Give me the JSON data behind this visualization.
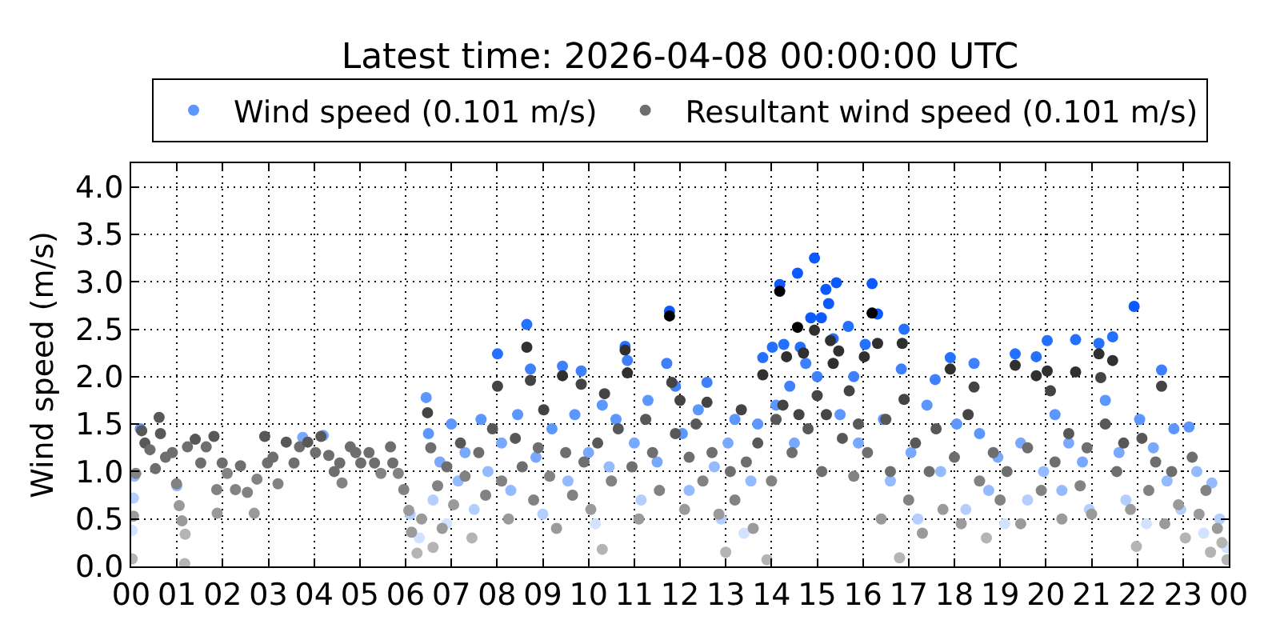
{
  "chart_data": {
    "type": "scatter",
    "title": "Latest time: 2026-04-08 00:00:00 UTC",
    "ylabel": "Wind speed (m/s)",
    "xlim": [
      0,
      24
    ],
    "xticks": [
      {
        "value": 0,
        "label": "00"
      },
      {
        "value": 1,
        "label": "01"
      },
      {
        "value": 2,
        "label": "02"
      },
      {
        "value": 3,
        "label": "03"
      },
      {
        "value": 4,
        "label": "04"
      },
      {
        "value": 5,
        "label": "05"
      },
      {
        "value": 6,
        "label": "06"
      },
      {
        "value": 7,
        "label": "07"
      },
      {
        "value": 8,
        "label": "08"
      },
      {
        "value": 9,
        "label": "09"
      },
      {
        "value": 10,
        "label": "10"
      },
      {
        "value": 11,
        "label": "11"
      },
      {
        "value": 12,
        "label": "12"
      },
      {
        "value": 13,
        "label": "13"
      },
      {
        "value": 14,
        "label": "14"
      },
      {
        "value": 15,
        "label": "15"
      },
      {
        "value": 16,
        "label": "16"
      },
      {
        "value": 17,
        "label": "17"
      },
      {
        "value": 18,
        "label": "18"
      },
      {
        "value": 19,
        "label": "19"
      },
      {
        "value": 20,
        "label": "20"
      },
      {
        "value": 21,
        "label": "21"
      },
      {
        "value": 22,
        "label": "22"
      },
      {
        "value": 23,
        "label": "23"
      },
      {
        "value": 24,
        "label": "00"
      }
    ],
    "ylim": [
      0,
      4.25
    ],
    "yticks": [
      {
        "value": 0,
        "label": "0.0"
      },
      {
        "value": 0.5,
        "label": "0.5"
      },
      {
        "value": 1,
        "label": "1.0"
      },
      {
        "value": 1.5,
        "label": "1.5"
      },
      {
        "value": 2,
        "label": "2.0"
      },
      {
        "value": 2.5,
        "label": "2.5"
      },
      {
        "value": 3,
        "label": "3.0"
      },
      {
        "value": 3.5,
        "label": "3.5"
      },
      {
        "value": 4,
        "label": "4.0"
      }
    ],
    "grid": true,
    "legend": "top",
    "marker": "circle",
    "series": [
      {
        "name": "Wind speed (0.101 m/s)",
        "color": "#5c96ff",
        "x": [
          0.02,
          0.05,
          0.07,
          0.2,
          1.0,
          3.75,
          4.2,
          6.1,
          6.3,
          6.45,
          6.5,
          6.6,
          6.75,
          6.9,
          7.0,
          7.15,
          7.3,
          7.5,
          7.65,
          7.8,
          8.01,
          8.1,
          8.3,
          8.45,
          8.65,
          8.73,
          8.85,
          9.0,
          9.2,
          9.43,
          9.55,
          9.7,
          9.84,
          10.0,
          10.15,
          10.3,
          10.45,
          10.6,
          10.8,
          10.85,
          11.0,
          11.15,
          11.3,
          11.5,
          11.71,
          11.77,
          11.9,
          12.05,
          12.2,
          12.4,
          12.59,
          12.75,
          12.9,
          13.05,
          13.2,
          13.4,
          13.55,
          13.7,
          13.81,
          14.02,
          14.1,
          14.18,
          14.27,
          14.4,
          14.5,
          14.57,
          14.63,
          14.75,
          14.86,
          14.94,
          15.0,
          15.09,
          15.19,
          15.25,
          15.35,
          15.42,
          15.5,
          15.68,
          15.8,
          15.9,
          16.05,
          16.2,
          16.32,
          16.45,
          16.6,
          16.84,
          16.9,
          17.05,
          17.2,
          17.4,
          17.58,
          17.7,
          17.91,
          18.05,
          18.25,
          18.43,
          18.55,
          18.75,
          18.95,
          19.1,
          19.33,
          19.45,
          19.6,
          19.79,
          19.95,
          20.03,
          20.2,
          20.35,
          20.5,
          20.65,
          20.8,
          20.95,
          21.16,
          21.3,
          21.46,
          21.6,
          21.75,
          21.93,
          22.05,
          22.2,
          22.35,
          22.53,
          22.65,
          22.8,
          22.95,
          23.13,
          23.3,
          23.45,
          23.63,
          23.8,
          23.95
        ],
        "values": [
          0.38,
          0.72,
          0.95,
          1.45,
          0.85,
          1.36,
          1.38,
          0.55,
          0.3,
          1.78,
          1.4,
          0.7,
          1.1,
          0.45,
          1.5,
          0.9,
          1.2,
          0.6,
          1.55,
          1.0,
          2.24,
          1.3,
          0.8,
          1.6,
          2.55,
          2.08,
          1.15,
          0.55,
          1.45,
          2.11,
          0.9,
          1.6,
          2.06,
          1.2,
          0.45,
          1.7,
          1.05,
          1.55,
          2.32,
          2.17,
          1.3,
          0.7,
          1.75,
          1.1,
          2.14,
          2.69,
          1.9,
          1.4,
          0.8,
          1.65,
          1.94,
          1.05,
          0.5,
          1.3,
          1.55,
          0.35,
          0.9,
          1.5,
          2.2,
          2.31,
          1.7,
          2.97,
          2.34,
          1.9,
          1.3,
          3.09,
          2.31,
          2.14,
          2.62,
          3.25,
          2.0,
          2.62,
          2.92,
          2.77,
          2.4,
          2.99,
          1.6,
          2.53,
          2.0,
          1.3,
          2.34,
          2.98,
          2.66,
          1.55,
          0.9,
          2.08,
          2.5,
          1.2,
          0.5,
          1.7,
          1.97,
          1.0,
          2.2,
          1.5,
          0.6,
          2.14,
          1.4,
          0.8,
          1.15,
          0.45,
          2.24,
          1.3,
          0.7,
          2.21,
          1.0,
          2.38,
          1.6,
          0.8,
          1.3,
          2.39,
          1.1,
          0.6,
          2.35,
          1.75,
          2.42,
          1.2,
          0.7,
          2.74,
          1.55,
          0.45,
          1.25,
          2.07,
          0.9,
          1.45,
          0.6,
          1.47,
          1.0,
          0.35,
          0.88,
          0.5,
          0.2
        ],
        "colors": [
          "#d2e2ff",
          "#b4ceff",
          "#94baff",
          "#5c96ff",
          "#94baff",
          "#78a8ff",
          "#78a8ff",
          "#b4ceff",
          "#d2e2ff",
          "#5c96ff",
          "#5c96ff",
          "#b4ceff",
          "#78a8ff",
          "#d2e2ff",
          "#5c96ff",
          "#94baff",
          "#78a8ff",
          "#b4ceff",
          "#5c96ff",
          "#94baff",
          "#2470ff",
          "#78a8ff",
          "#94baff",
          "#5c96ff",
          "#2470ff",
          "#4080ff",
          "#78a8ff",
          "#b4ceff",
          "#5c96ff",
          "#4080ff",
          "#94baff",
          "#5c96ff",
          "#4080ff",
          "#78a8ff",
          "#d2e2ff",
          "#5c96ff",
          "#94baff",
          "#5c96ff",
          "#2470ff",
          "#4080ff",
          "#78a8ff",
          "#b4ceff",
          "#5c96ff",
          "#78a8ff",
          "#4080ff",
          "#0a5aff",
          "#4080ff",
          "#5c96ff",
          "#94baff",
          "#5c96ff",
          "#4080ff",
          "#94baff",
          "#b4ceff",
          "#78a8ff",
          "#5c96ff",
          "#d2e2ff",
          "#94baff",
          "#5c96ff",
          "#2470ff",
          "#2470ff",
          "#5c96ff",
          "#0a5aff",
          "#2470ff",
          "#4080ff",
          "#78a8ff",
          "#0a5aff",
          "#2470ff",
          "#4080ff",
          "#0a5aff",
          "#0a5aff",
          "#4080ff",
          "#0a5aff",
          "#0a5aff",
          "#0a5aff",
          "#2470ff",
          "#0a5aff",
          "#5c96ff",
          "#2470ff",
          "#4080ff",
          "#78a8ff",
          "#2470ff",
          "#0a5aff",
          "#0a5aff",
          "#5c96ff",
          "#94baff",
          "#4080ff",
          "#2470ff",
          "#78a8ff",
          "#b4ceff",
          "#5c96ff",
          "#4080ff",
          "#94baff",
          "#2470ff",
          "#5c96ff",
          "#b4ceff",
          "#4080ff",
          "#5c96ff",
          "#94baff",
          "#78a8ff",
          "#d2e2ff",
          "#2470ff",
          "#78a8ff",
          "#b4ceff",
          "#2470ff",
          "#94baff",
          "#2470ff",
          "#5c96ff",
          "#94baff",
          "#78a8ff",
          "#2470ff",
          "#78a8ff",
          "#b4ceff",
          "#2470ff",
          "#5c96ff",
          "#2470ff",
          "#78a8ff",
          "#b4ceff",
          "#0a5aff",
          "#5c96ff",
          "#d2e2ff",
          "#78a8ff",
          "#4080ff",
          "#94baff",
          "#5c96ff",
          "#b4ceff",
          "#5c96ff",
          "#94baff",
          "#d2e2ff",
          "#94baff",
          "#b4ceff",
          "#d2e2ff"
        ]
      },
      {
        "name": "Resultant wind speed (0.101 m/s)",
        "color": "#6e6e6e",
        "x": [
          0.02,
          0.05,
          0.1,
          0.23,
          0.3,
          0.41,
          0.53,
          0.61,
          0.64,
          0.75,
          0.9,
          0.99,
          1.05,
          1.11,
          1.17,
          1.18,
          1.23,
          1.4,
          1.52,
          1.64,
          1.81,
          1.87,
          1.88,
          1.99,
          2.1,
          2.28,
          2.39,
          2.54,
          2.69,
          2.75,
          2.92,
          2.98,
          3.1,
          3.21,
          3.39,
          3.56,
          3.68,
          3.86,
          4.03,
          4.15,
          4.32,
          4.44,
          4.56,
          4.61,
          4.79,
          4.91,
          5.02,
          5.2,
          5.32,
          5.46,
          5.67,
          5.72,
          5.84,
          5.96,
          6.07,
          6.13,
          6.25,
          6.35,
          6.48,
          6.55,
          6.6,
          6.7,
          6.8,
          6.9,
          7.05,
          7.2,
          7.3,
          7.45,
          7.6,
          7.75,
          7.9,
          8.01,
          8.1,
          8.25,
          8.4,
          8.55,
          8.65,
          8.73,
          8.8,
          8.9,
          9.02,
          9.15,
          9.3,
          9.43,
          9.5,
          9.65,
          9.84,
          9.9,
          10.05,
          10.2,
          10.3,
          10.35,
          10.5,
          10.65,
          10.8,
          10.85,
          10.95,
          11.1,
          11.25,
          11.4,
          11.55,
          11.77,
          11.82,
          11.9,
          12.0,
          12.1,
          12.2,
          12.35,
          12.5,
          12.59,
          12.7,
          12.85,
          13.0,
          13.1,
          13.2,
          13.34,
          13.45,
          13.6,
          13.7,
          13.81,
          13.9,
          14.0,
          14.1,
          14.18,
          14.25,
          14.33,
          14.45,
          14.57,
          14.6,
          14.7,
          14.8,
          14.94,
          15.0,
          15.1,
          15.2,
          15.29,
          15.35,
          15.47,
          15.55,
          15.7,
          15.8,
          15.9,
          16.03,
          16.1,
          16.2,
          16.32,
          16.4,
          16.5,
          16.6,
          16.8,
          16.86,
          16.9,
          17.0,
          17.15,
          17.3,
          17.45,
          17.6,
          17.75,
          17.91,
          18.0,
          18.15,
          18.3,
          18.43,
          18.55,
          18.7,
          18.85,
          19.0,
          19.15,
          19.33,
          19.45,
          19.6,
          19.79,
          19.9,
          20.03,
          20.1,
          20.2,
          20.35,
          20.5,
          20.65,
          20.75,
          20.9,
          21.0,
          21.16,
          21.2,
          21.3,
          21.46,
          21.55,
          21.7,
          21.85,
          21.98,
          22.1,
          22.25,
          22.4,
          22.53,
          22.6,
          22.75,
          22.9,
          23.05,
          23.2,
          23.35,
          23.5,
          23.6,
          23.75,
          23.85,
          23.96
        ],
        "values": [
          0.08,
          0.53,
          0.98,
          1.43,
          1.3,
          1.23,
          1.03,
          1.57,
          1.4,
          1.15,
          1.2,
          0.87,
          0.64,
          0.48,
          0.03,
          0.34,
          1.26,
          1.34,
          1.09,
          1.26,
          1.37,
          0.81,
          0.56,
          1.09,
          0.98,
          0.81,
          1.06,
          0.78,
          0.56,
          0.92,
          1.37,
          1.09,
          1.15,
          0.87,
          1.31,
          1.09,
          1.26,
          1.31,
          1.2,
          1.37,
          1.17,
          1.0,
          1.09,
          0.88,
          1.26,
          1.2,
          1.09,
          1.2,
          1.09,
          0.98,
          1.26,
          1.09,
          0.98,
          0.81,
          0.59,
          0.36,
          0.14,
          0.5,
          1.62,
          1.25,
          0.2,
          0.85,
          0.4,
          1.05,
          0.65,
          1.3,
          0.95,
          0.3,
          1.2,
          0.75,
          1.45,
          1.9,
          0.9,
          0.5,
          1.35,
          1.05,
          2.31,
          1.96,
          0.7,
          1.25,
          1.65,
          0.95,
          0.4,
          2.01,
          1.2,
          0.75,
          1.92,
          1.1,
          0.6,
          1.3,
          0.18,
          1.82,
          0.9,
          1.45,
          2.28,
          2.04,
          1.05,
          0.5,
          1.55,
          1.2,
          0.8,
          2.64,
          1.94,
          1.4,
          1.75,
          0.6,
          1.15,
          1.5,
          0.9,
          1.73,
          1.2,
          0.55,
          0.15,
          1.0,
          0.7,
          1.65,
          1.1,
          0.4,
          1.3,
          2.02,
          0.07,
          0.9,
          1.55,
          2.9,
          1.7,
          2.21,
          1.2,
          2.52,
          1.6,
          2.25,
          1.45,
          2.49,
          1.8,
          1.0,
          1.6,
          2.38,
          2.14,
          2.27,
          1.35,
          1.85,
          0.95,
          1.5,
          2.21,
          1.2,
          2.67,
          2.35,
          0.5,
          1.55,
          1.0,
          0.09,
          2.35,
          1.76,
          0.7,
          1.3,
          0.35,
          1.0,
          1.45,
          0.6,
          2.08,
          1.15,
          0.45,
          1.6,
          1.89,
          0.9,
          0.3,
          1.2,
          0.7,
          1.0,
          2.12,
          0.45,
          1.25,
          2.01,
          0.8,
          2.06,
          1.85,
          1.1,
          0.5,
          1.4,
          2.05,
          0.85,
          1.25,
          0.55,
          2.24,
          1.99,
          1.5,
          2.17,
          1.0,
          1.3,
          0.6,
          0.21,
          1.35,
          0.8,
          1.1,
          1.9,
          0.45,
          1.0,
          0.65,
          0.3,
          1.15,
          0.55,
          0.8,
          0.15,
          0.4,
          0.25,
          0.07
        ],
        "colors": [
          "#b4b4b4",
          "#9a9a9a",
          "#828282",
          "#585858",
          "#585858",
          "#6e6e6e",
          "#6e6e6e",
          "#585858",
          "#585858",
          "#6e6e6e",
          "#6e6e6e",
          "#828282",
          "#9a9a9a",
          "#9a9a9a",
          "#b4b4b4",
          "#b4b4b4",
          "#6e6e6e",
          "#585858",
          "#6e6e6e",
          "#6e6e6e",
          "#585858",
          "#828282",
          "#9a9a9a",
          "#6e6e6e",
          "#828282",
          "#828282",
          "#6e6e6e",
          "#828282",
          "#9a9a9a",
          "#828282",
          "#585858",
          "#6e6e6e",
          "#6e6e6e",
          "#828282",
          "#585858",
          "#6e6e6e",
          "#6e6e6e",
          "#585858",
          "#6e6e6e",
          "#585858",
          "#6e6e6e",
          "#6e6e6e",
          "#6e6e6e",
          "#828282",
          "#6e6e6e",
          "#6e6e6e",
          "#6e6e6e",
          "#6e6e6e",
          "#6e6e6e",
          "#828282",
          "#6e6e6e",
          "#6e6e6e",
          "#828282",
          "#828282",
          "#9a9a9a",
          "#9a9a9a",
          "#b4b4b4",
          "#9a9a9a",
          "#444444",
          "#6e6e6e",
          "#b4b4b4",
          "#828282",
          "#9a9a9a",
          "#6e6e6e",
          "#9a9a9a",
          "#585858",
          "#828282",
          "#b4b4b4",
          "#6e6e6e",
          "#828282",
          "#585858",
          "#444444",
          "#828282",
          "#9a9a9a",
          "#585858",
          "#6e6e6e",
          "#303030",
          "#444444",
          "#828282",
          "#6e6e6e",
          "#444444",
          "#828282",
          "#9a9a9a",
          "#303030",
          "#6e6e6e",
          "#828282",
          "#444444",
          "#6e6e6e",
          "#9a9a9a",
          "#585858",
          "#b4b4b4",
          "#444444",
          "#828282",
          "#585858",
          "#303030",
          "#303030",
          "#6e6e6e",
          "#9a9a9a",
          "#585858",
          "#6e6e6e",
          "#828282",
          "#000000",
          "#444444",
          "#585858",
          "#444444",
          "#9a9a9a",
          "#6e6e6e",
          "#585858",
          "#828282",
          "#444444",
          "#6e6e6e",
          "#9a9a9a",
          "#b4b4b4",
          "#6e6e6e",
          "#828282",
          "#444444",
          "#6e6e6e",
          "#9a9a9a",
          "#585858",
          "#303030",
          "#b4b4b4",
          "#828282",
          "#585858",
          "#000000",
          "#444444",
          "#303030",
          "#6e6e6e",
          "#000000",
          "#444444",
          "#303030",
          "#585858",
          "#303030",
          "#444444",
          "#6e6e6e",
          "#444444",
          "#303030",
          "#303030",
          "#303030",
          "#585858",
          "#444444",
          "#828282",
          "#585858",
          "#303030",
          "#6e6e6e",
          "#000000",
          "#303030",
          "#9a9a9a",
          "#585858",
          "#6e6e6e",
          "#b4b4b4",
          "#303030",
          "#444444",
          "#828282",
          "#585858",
          "#9a9a9a",
          "#6e6e6e",
          "#585858",
          "#9a9a9a",
          "#303030",
          "#6e6e6e",
          "#9a9a9a",
          "#444444",
          "#444444",
          "#828282",
          "#b4b4b4",
          "#6e6e6e",
          "#828282",
          "#6e6e6e",
          "#303030",
          "#9a9a9a",
          "#6e6e6e",
          "#303030",
          "#828282",
          "#303030",
          "#444444",
          "#6e6e6e",
          "#9a9a9a",
          "#585858",
          "#303030",
          "#828282",
          "#6e6e6e",
          "#9a9a9a",
          "#303030",
          "#444444",
          "#585858",
          "#303030",
          "#6e6e6e",
          "#585858",
          "#9a9a9a",
          "#b4b4b4",
          "#585858",
          "#828282",
          "#6e6e6e",
          "#444444",
          "#9a9a9a",
          "#6e6e6e",
          "#9a9a9a",
          "#b4b4b4",
          "#6e6e6e",
          "#9a9a9a",
          "#828282",
          "#b4b4b4",
          "#9a9a9a",
          "#b4b4b4",
          "#b4b4b4"
        ]
      }
    ]
  }
}
